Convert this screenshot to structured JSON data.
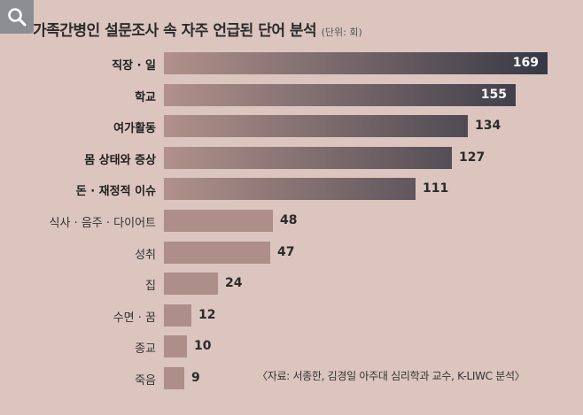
{
  "ui": {
    "zoom_icon": "magnifier-icon"
  },
  "chart_data": {
    "type": "bar",
    "orientation": "horizontal",
    "title": "가족간병인 설문조사 속 자주 언급된 단어 분석",
    "unit_label": "(단위: 회)",
    "categories": [
      "직장 · 일",
      "학교",
      "여가활동",
      "몸 상태와 증상",
      "돈 · 재정적 이슈",
      "식사 · 음주 · 다이어트",
      "성취",
      "집",
      "수면 · 꿈",
      "종교",
      "죽음"
    ],
    "values": [
      169,
      155,
      134,
      127,
      111,
      48,
      47,
      24,
      12,
      10,
      9
    ],
    "highlighted_top": 5,
    "xlim": [
      0,
      169
    ],
    "grid": false,
    "legend": "none",
    "source": "〈자료: 서종한, 김경일 아주대 심리학과 교수, K-LIWC 분석〉",
    "colors": {
      "background": "#dcc5bf",
      "bar_light": "#b1918b",
      "bar_dark": "#363845",
      "bar_small": "#ad8e88"
    }
  }
}
